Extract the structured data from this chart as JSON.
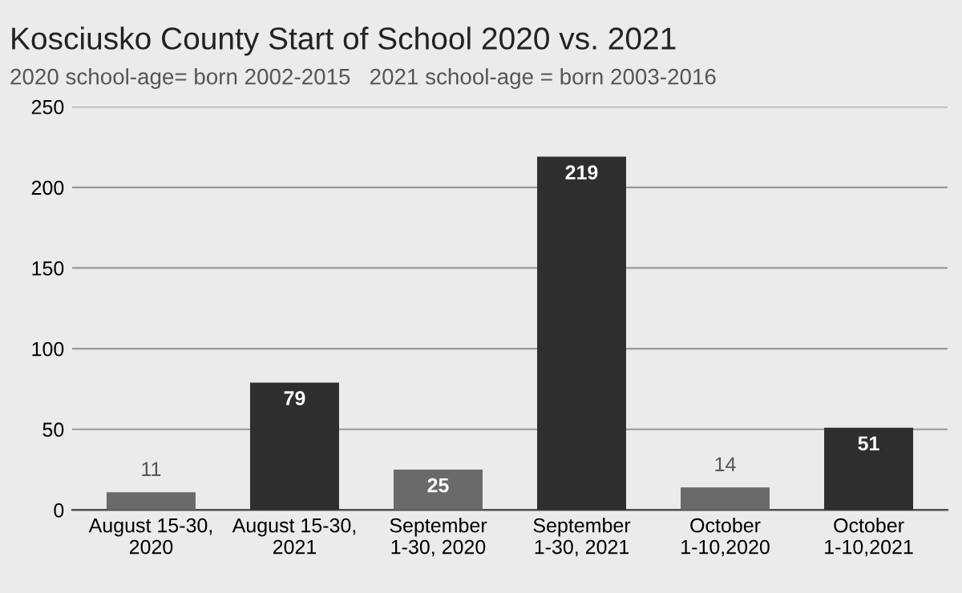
{
  "chart_data": {
    "type": "bar",
    "title": "Kosciusko County Start of School 2020 vs. 2021",
    "subtitle": "2020 school-age= born 2002-2015   2021 school-age = born 2003-2016",
    "categories": [
      "August 15-30,\n2020",
      "August 15-30,\n2021",
      "September\n1-30, 2020",
      "September\n1-30, 2021",
      "October\n1-10,2020",
      "October\n1-10,2021"
    ],
    "values": [
      11,
      79,
      25,
      219,
      14,
      51
    ],
    "colors": [
      "#6a6a6a",
      "#2e2e2e",
      "#6a6a6a",
      "#2e2e2e",
      "#6a6a6a",
      "#2e2e2e"
    ],
    "ylim": [
      0,
      250
    ],
    "yticks": [
      0,
      50,
      100,
      150,
      200,
      250
    ],
    "grid": "y",
    "data_labels": true
  }
}
